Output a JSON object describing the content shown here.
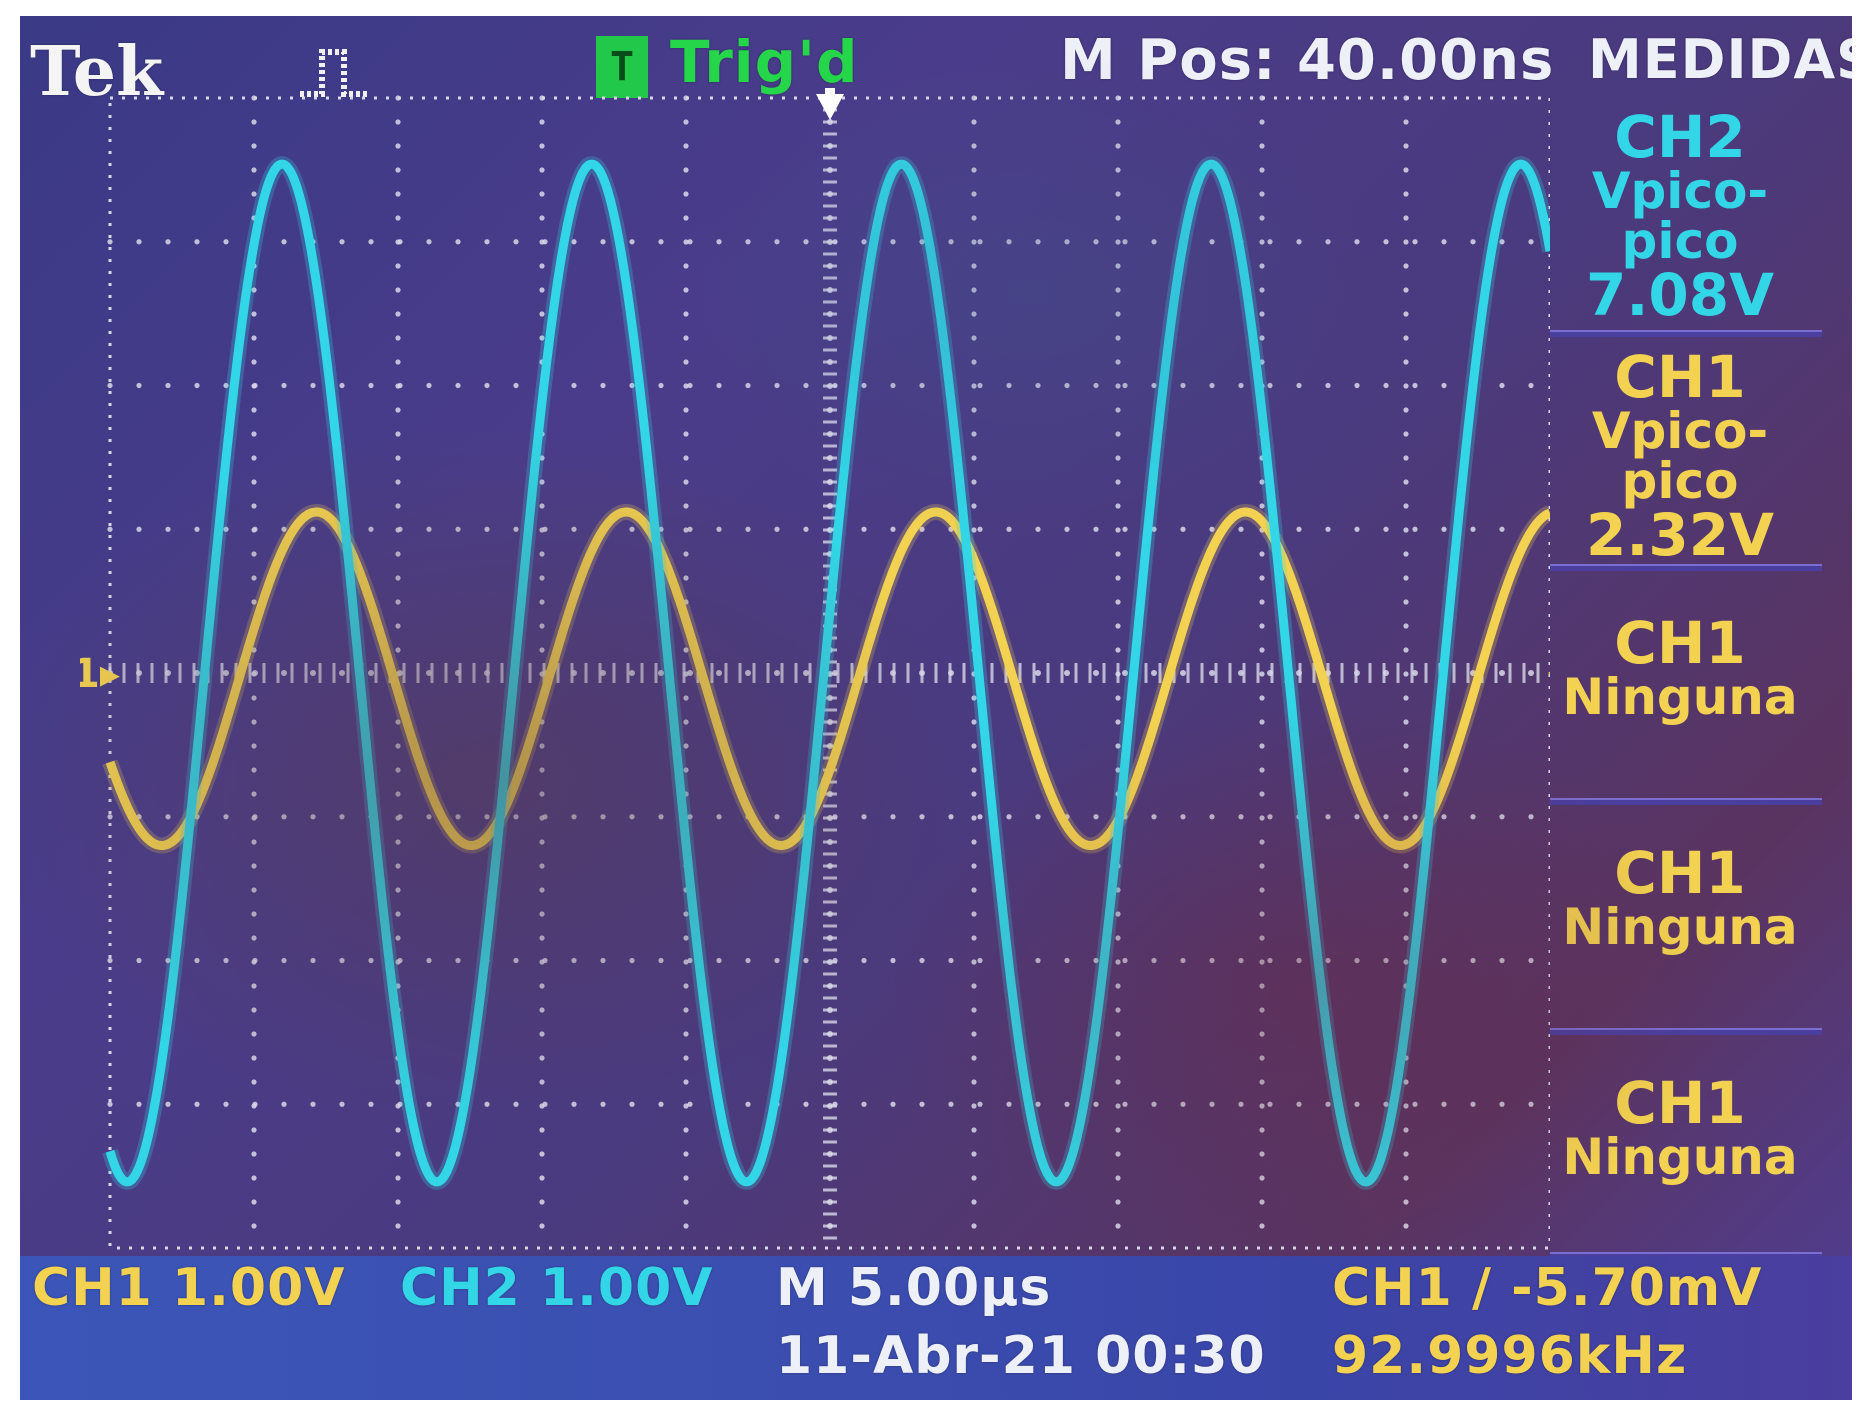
{
  "header": {
    "brand": "Tek",
    "trigger_icon_letter": "T",
    "trigger_status": "Trig'd",
    "horizontal_position": "M Pos: 40.00ns"
  },
  "side_menu": {
    "title": "MEDIDAS",
    "items": [
      {
        "channel": "CH2",
        "type": "Vpico-pico",
        "value": "7.08V",
        "color": "#32d6e6"
      },
      {
        "channel": "CH1",
        "type": "Vpico-pico",
        "value": "2.32V",
        "color": "#f2d250"
      },
      {
        "channel": "CH1",
        "type": "Ninguna",
        "value": "",
        "color": "#f2d250"
      },
      {
        "channel": "CH1",
        "type": "Ninguna",
        "value": "",
        "color": "#f2d250"
      },
      {
        "channel": "CH1",
        "type": "Ninguna",
        "value": "",
        "color": "#f2d250"
      }
    ]
  },
  "status_bar": {
    "ch1_scale": "CH1  1.00V",
    "ch2_scale": "CH2  1.00V",
    "time_base": "M 5.00µs",
    "date_time": "11-Abr-21 00:30",
    "trigger_info": "CH1 ∕ -5.70mV",
    "frequency": "92.9996kHz"
  },
  "markers": {
    "ch1_ground": "1"
  },
  "scope": {
    "h_divisions": 10,
    "v_divisions": 8,
    "volts_per_div": 1.0,
    "time_per_div_us": 5.0,
    "grid_color": "#d8d8e8"
  },
  "chart_data": {
    "type": "line",
    "title": "",
    "xlabel": "",
    "ylabel": "",
    "xlim": [
      0,
      50
    ],
    "ylim": [
      -4,
      4
    ],
    "x_units": "µs",
    "y_units": "V",
    "series": [
      {
        "name": "CH1",
        "color": "#f2d250",
        "amplitude": 1.16,
        "offset": -0.04,
        "frequency_kHz": 92.9996,
        "phase_deg": 210
      },
      {
        "name": "CH2",
        "color": "#32d6e6",
        "amplitude": 3.54,
        "offset": 0.0,
        "frequency_kHz": 92.9996,
        "phase_deg": 250
      }
    ]
  }
}
